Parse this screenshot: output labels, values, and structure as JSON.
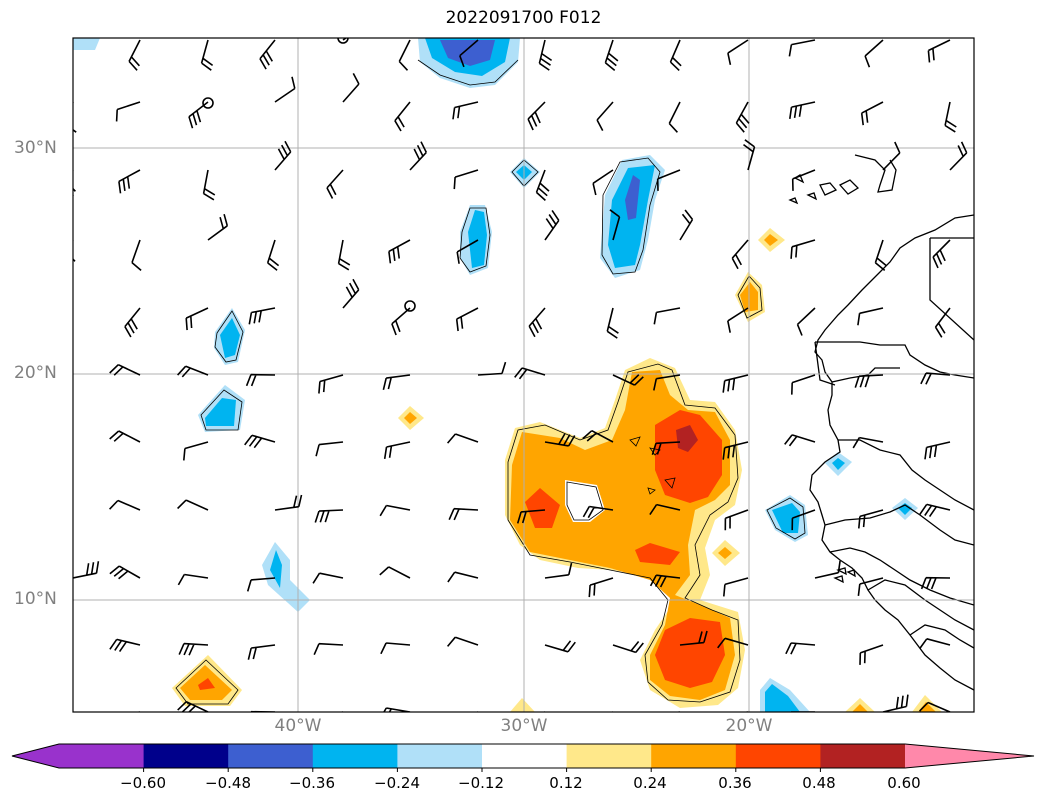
{
  "title": "2022091700 F012",
  "map": {
    "lat_labels": [
      "30°N",
      "20°N",
      "10°N"
    ],
    "lon_labels": [
      "40°W",
      "30°W",
      "20°W"
    ],
    "gridlines": true,
    "features": [
      "wind-barbs",
      "filled-contours",
      "coastlines",
      "country-borders"
    ]
  },
  "colorbar": {
    "ticks": [
      "−0.60",
      "−0.48",
      "−0.36",
      "−0.24",
      "−0.12",
      "0.12",
      "0.24",
      "0.36",
      "0.48",
      "0.60"
    ],
    "colors": [
      "#9932cc",
      "#00008b",
      "#3d5fd0",
      "#00b4f0",
      "#b0e0f8",
      "#ffffff",
      "#ffe88a",
      "#ffa500",
      "#ff4500",
      "#b22222",
      "#ff88aa"
    ]
  }
}
